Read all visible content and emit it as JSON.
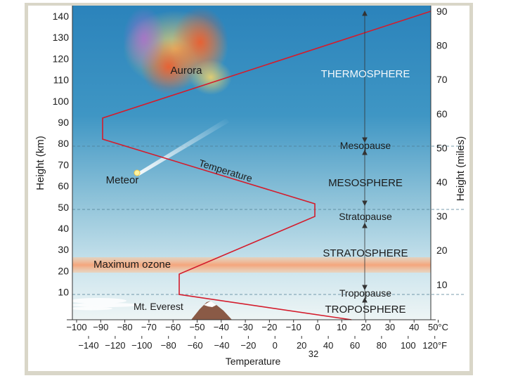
{
  "axes": {
    "left_label": "Height (km)",
    "right_label": "Height (miles)",
    "bottom_label": "Temperature",
    "km_ticks": [
      "140",
      "130",
      "120",
      "110",
      "100",
      "90",
      "80",
      "70",
      "60",
      "50",
      "40",
      "30",
      "20",
      "10"
    ],
    "mile_ticks": [
      "90",
      "80",
      "70",
      "60",
      "50",
      "40",
      "30",
      "20",
      "10"
    ],
    "celsius_ticks": [
      "−100",
      "−90",
      "−80",
      "−70",
      "−60",
      "−50",
      "−40",
      "−30",
      "−20",
      "−10",
      "0",
      "10",
      "20",
      "30",
      "40",
      "50°C"
    ],
    "fahrenheit_ticks": [
      "−140",
      "−120",
      "−100",
      "−80",
      "−60",
      "−40",
      "−20",
      "0",
      "20",
      "40",
      "60",
      "80",
      "100",
      "120°F"
    ],
    "freezing_label": "32"
  },
  "layers": {
    "thermosphere": "THERMOSPHERE",
    "mesopause": "Mesopause",
    "mesosphere": "MESOSPHERE",
    "stratopause": "Stratopause",
    "stratosphere": "STRATOSPHERE",
    "tropopause": "Tropopause",
    "troposphere": "TROPOSPHERE"
  },
  "features": {
    "aurora": "Aurora",
    "meteor": "Meteor",
    "ozone": "Maximum ozone",
    "everest": "Mt. Everest",
    "temperature_curve": "Temperature"
  },
  "colors": {
    "temperature_line": "#d41c2c",
    "ozone_band": "#f6b48c",
    "sky_top": "#2d86bd",
    "sky_bottom": "#e4f0f3"
  }
}
